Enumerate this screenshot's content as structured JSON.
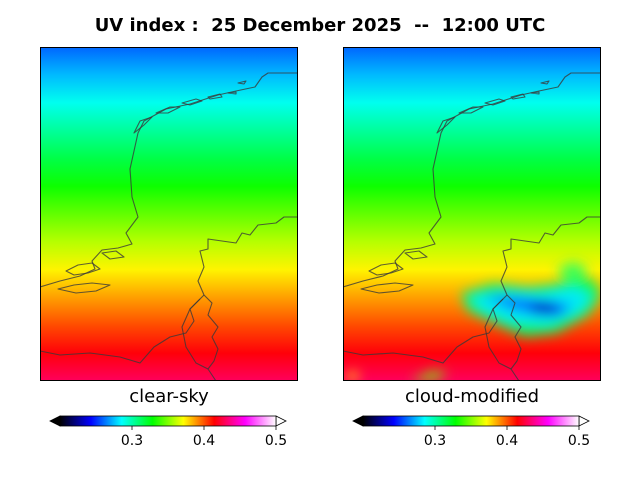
{
  "chart_data": {
    "type": "heatmap",
    "title": "UV index :  25 December 2025  --  12:00 UTC",
    "panels": [
      {
        "label": "clear-sky",
        "field": "uv_clear_sky",
        "value_range_north_to_south": [
          0.26,
          0.43
        ],
        "clouds": false
      },
      {
        "label": "cloud-modified",
        "field": "uv_cloud_modified",
        "value_range_north_to_south": [
          0.26,
          0.43
        ],
        "clouds": true,
        "cloud_minimum": 0.22
      }
    ],
    "colorbar": {
      "min": 0.2,
      "max": 0.5,
      "extend": "both",
      "ticks": [
        0.3,
        0.4,
        0.5
      ],
      "tick_labels": [
        "0.3",
        "0.4",
        "0.5"
      ],
      "colormap": [
        "#000000",
        "#0000ff",
        "#00ffff",
        "#00ff00",
        "#ffff00",
        "#ff0000",
        "#ff00ff",
        "#ffffff"
      ]
    },
    "colors": {
      "coastline": "#3a3a3a",
      "frame": "#000000"
    }
  }
}
